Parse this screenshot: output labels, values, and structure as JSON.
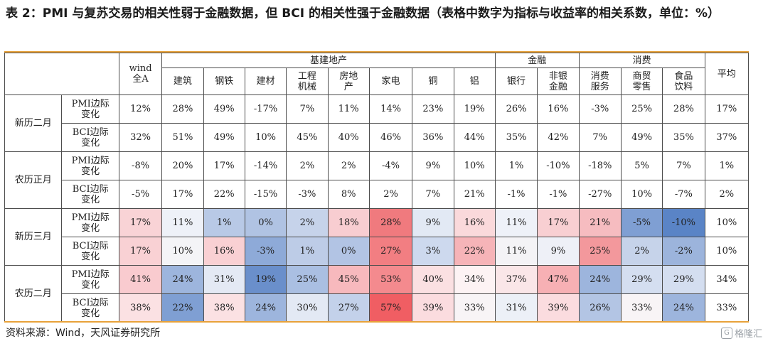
{
  "title": "表 2：PMI 与复苏交易的相关性弱于金融数据，但 BCI 的相关性强于金融数据（表格中数字为指标与收益率的相关系数，单位：%）",
  "table": {
    "groups": {
      "wind": "wind\n全A",
      "infra": "基建地产",
      "finance": "金融",
      "consumer": "消费",
      "avg": "平均"
    },
    "columns": [
      "建筑",
      "钢铁",
      "建材",
      "工程\n机械",
      "房地\n产",
      "家电",
      "铜",
      "铝",
      "银行",
      "非银\n金融",
      "消费\n服务",
      "商贸\n零售",
      "食品\n饮料"
    ],
    "periods": [
      {
        "label": "新历二月",
        "rows": [
          {
            "metric": "PMI边际\n变化",
            "values": [
              "12%",
              "28%",
              "49%",
              "-17%",
              "7%",
              "11%",
              "14%",
              "23%",
              "19%",
              "26%",
              "16%",
              "-3%",
              "25%",
              "28%",
              "17%"
            ]
          },
          {
            "metric": "BCI边际\n变化",
            "values": [
              "32%",
              "51%",
              "49%",
              "10%",
              "45%",
              "40%",
              "46%",
              "36%",
              "44%",
              "35%",
              "42%",
              "7%",
              "49%",
              "35%",
              "37%"
            ]
          }
        ]
      },
      {
        "label": "农历正月",
        "rows": [
          {
            "metric": "PMI边际\n变化",
            "values": [
              "-8%",
              "20%",
              "17%",
              "-14%",
              "2%",
              "2%",
              "-4%",
              "9%",
              "10%",
              "1%",
              "-10%",
              "-18%",
              "5%",
              "7%",
              "1%"
            ]
          },
          {
            "metric": "BCI边际\n变化",
            "values": [
              "-5%",
              "17%",
              "22%",
              "-15%",
              "-3%",
              "8%",
              "2%",
              "7%",
              "21%",
              "-1%",
              "-1%",
              "-27%",
              "10%",
              "-7%",
              "2%"
            ]
          }
        ]
      },
      {
        "label": "新历三月",
        "rows": [
          {
            "metric": "PMI边际\n变化",
            "values": [
              "17%",
              "11%",
              "1%",
              "0%",
              "2%",
              "18%",
              "28%",
              "9%",
              "16%",
              "11%",
              "17%",
              "21%",
              "-5%",
              "-10%",
              "10%"
            ],
            "colors": [
              "#f9d3d6",
              "#eef1f8",
              "#b8c9e6",
              "#b0c3e3",
              "#c6d3ea",
              "#f8cdd1",
              "#f07a7e",
              "#e2e9f4",
              "#fad9db",
              "#eef1f8",
              "#f8cfd2",
              "#f6bcc0",
              "#7f9fd3",
              "#5a84c6",
              ""
            ]
          },
          {
            "metric": "BCI边际\n变化",
            "values": [
              "17%",
              "10%",
              "16%",
              "-3%",
              "1%",
              "0%",
              "27%",
              "3%",
              "22%",
              "11%",
              "9%",
              "25%",
              "2%",
              "-2%",
              "10%"
            ],
            "colors": [
              "#f9d1d4",
              "#f4f4f7",
              "#f9d0d3",
              "#8eaad8",
              "#bdccE7",
              "#b2c4e4",
              "#f27e82",
              "#cdd9ee",
              "#f6b4b8",
              "#f4f3f6",
              "#eef0f7",
              "#f3989c",
              "#c6d3ea",
              "#9cb4dc",
              ""
            ]
          }
        ]
      },
      {
        "label": "农历二月",
        "rows": [
          {
            "metric": "PMI边际\n变化",
            "values": [
              "41%",
              "24%",
              "31%",
              "19%",
              "25%",
              "45%",
              "53%",
              "40%",
              "34%",
              "37%",
              "47%",
              "24%",
              "29%",
              "29%",
              "34%"
            ],
            "colors": [
              "#f9cbcf",
              "#9db5dd",
              "#e4e9f4",
              "#6a8fcb",
              "#aabfe2",
              "#f7b9bd",
              "#f48a8e",
              "#fbe0e2",
              "#fdf3f4",
              "#fae6e8",
              "#f7b0b4",
              "#9db5dd",
              "#d4def0",
              "#d4def0",
              ""
            ]
          },
          {
            "metric": "BCI边际\n变化",
            "values": [
              "38%",
              "22%",
              "38%",
              "24%",
              "30%",
              "27%",
              "57%",
              "39%",
              "33%",
              "31%",
              "39%",
              "26%",
              "33%",
              "24%",
              "33%"
            ],
            "colors": [
              "#fbe1e3",
              "#7f9fd3",
              "#fbe1e3",
              "#9db5dd",
              "#e3e9f4",
              "#c3d1ea",
              "#f05e63",
              "#fbdcdf",
              "#f8f4f6",
              "#ecf0f7",
              "#fbdcdf",
              "#b3c5e4",
              "#f8f4f6",
              "#9db5dd",
              ""
            ]
          }
        ]
      }
    ]
  },
  "source": "资料来源：Wind，天风证券研究所",
  "watermark": "格隆汇",
  "colors": {
    "rule": "#e8a23a",
    "positive": "#f05e63",
    "negative": "#5a84c6"
  }
}
